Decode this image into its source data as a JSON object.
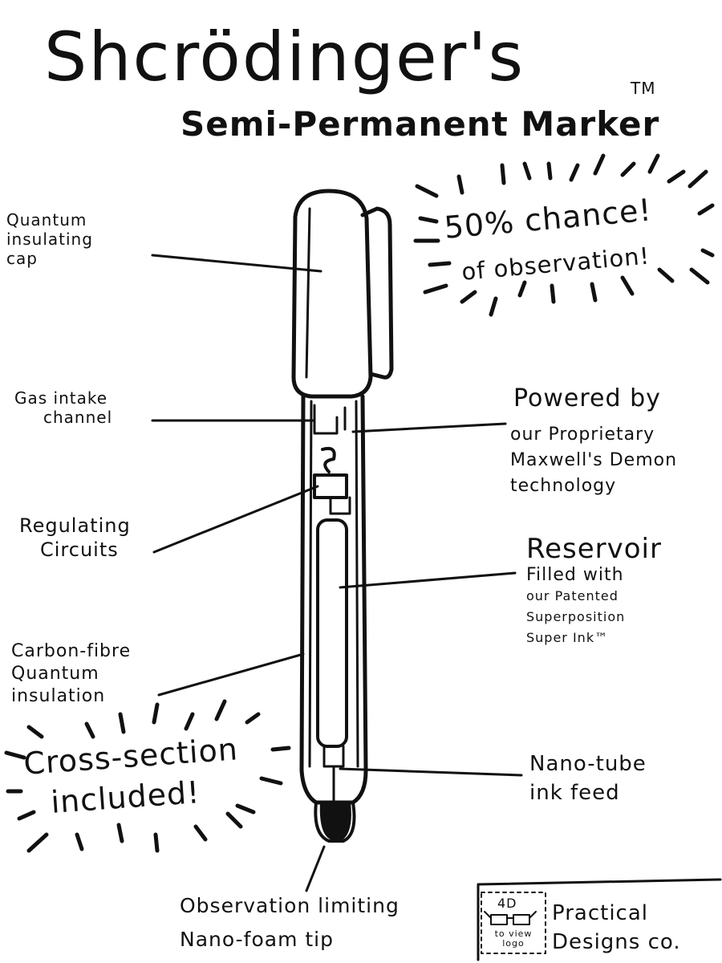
{
  "title": "Shcrödinger's",
  "trademark": "TM",
  "subtitle": "Semi-Permanent Marker",
  "burst_top": {
    "line1": "50% chance!",
    "line2": "of observation!"
  },
  "burst_bottom": {
    "line1": "Cross-section",
    "line2": "included!"
  },
  "labels_left": {
    "cap": [
      "Quantum",
      "insulating",
      "cap"
    ],
    "gas": [
      "Gas intake",
      "channel"
    ],
    "regulating": [
      "Regulating",
      "Circuits"
    ],
    "carbon": [
      "Carbon-fibre",
      "Quantum",
      "insulation"
    ],
    "tip": [
      "Observation limiting",
      "Nano-foam tip"
    ]
  },
  "labels_right": {
    "powered": [
      "Powered by",
      "our Proprietary",
      "Maxwell's Demon",
      "technology"
    ],
    "reservoir_title": "Reservoir",
    "reservoir": [
      "Filled with",
      "our Patented",
      "Superposition",
      "Super Ink™"
    ],
    "nanotube": [
      "Nano-tube",
      "ink feed"
    ]
  },
  "logo": {
    "badge_top": "4D",
    "badge_bottom": "to view logo",
    "company_line1": "Practical",
    "company_line2": "Designs co."
  }
}
